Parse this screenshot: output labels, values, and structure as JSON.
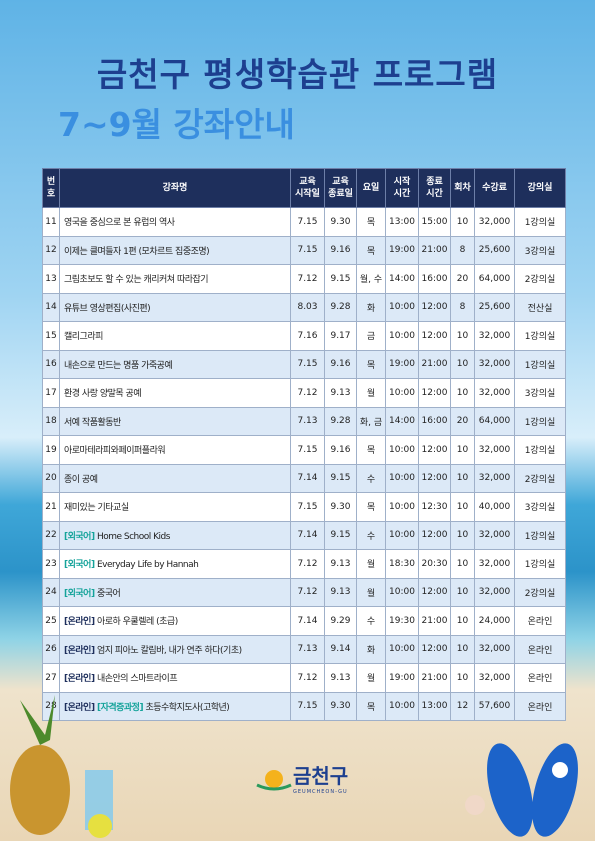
{
  "header": {
    "title": "금천구 평생학습관 프로그램",
    "subtitle": "7~9월 강좌안내"
  },
  "table": {
    "columns": [
      "번\n호",
      "강좌명",
      "교육\n시작일",
      "교육\n종료일",
      "요일",
      "시작\n시간",
      "종료\n시간",
      "회차",
      "수강료",
      "강의실"
    ],
    "rows": [
      {
        "no": "11",
        "tags": [],
        "name": "영국을 중심으로 본 유럽의 역사",
        "cells": [
          "7.15",
          "9.30",
          "목",
          "13:00",
          "15:00",
          "10",
          "32,000",
          "1강의실"
        ]
      },
      {
        "no": "12",
        "tags": [],
        "name": "이제는 클며들자 1편 (모차르트 집중조명)",
        "cells": [
          "7.15",
          "9.16",
          "목",
          "19:00",
          "21:00",
          "8",
          "25,600",
          "3강의실"
        ]
      },
      {
        "no": "13",
        "tags": [],
        "name": "그림초보도 할 수 있는 캐리커쳐 따라잡기",
        "cells": [
          "7.12",
          "9.15",
          "월, 수",
          "14:00",
          "16:00",
          "20",
          "64,000",
          "2강의실"
        ]
      },
      {
        "no": "14",
        "tags": [],
        "name": "유튜브 영상편집(사진편)",
        "cells": [
          "8.03",
          "9.28",
          "화",
          "10:00",
          "12:00",
          "8",
          "25,600",
          "전산실"
        ]
      },
      {
        "no": "15",
        "tags": [],
        "name": "캘리그라피",
        "cells": [
          "7.16",
          "9.17",
          "금",
          "10:00",
          "12:00",
          "10",
          "32,000",
          "1강의실"
        ]
      },
      {
        "no": "16",
        "tags": [],
        "name": "내손으로 만드는 명품 가죽공예",
        "cells": [
          "7.15",
          "9.16",
          "목",
          "19:00",
          "21:00",
          "10",
          "32,000",
          "1강의실"
        ]
      },
      {
        "no": "17",
        "tags": [],
        "name": "환경 사랑 양말목 공예",
        "cells": [
          "7.12",
          "9.13",
          "월",
          "10:00",
          "12:00",
          "10",
          "32,000",
          "3강의실"
        ]
      },
      {
        "no": "18",
        "tags": [],
        "name": "서예 작품활동반",
        "cells": [
          "7.13",
          "9.28",
          "화, 금",
          "14:00",
          "16:00",
          "20",
          "64,000",
          "1강의실"
        ]
      },
      {
        "no": "19",
        "tags": [],
        "name": "아로마테라피와페이퍼플라워",
        "cells": [
          "7.15",
          "9.16",
          "목",
          "10:00",
          "12:00",
          "10",
          "32,000",
          "1강의실"
        ]
      },
      {
        "no": "20",
        "tags": [],
        "name": "종이 공예",
        "cells": [
          "7.14",
          "9.15",
          "수",
          "10:00",
          "12:00",
          "10",
          "32,000",
          "2강의실"
        ]
      },
      {
        "no": "21",
        "tags": [],
        "name": "재미있는 기타교실",
        "cells": [
          "7.15",
          "9.30",
          "목",
          "10:00",
          "12:30",
          "10",
          "40,000",
          "3강의실"
        ]
      },
      {
        "no": "22",
        "tags": [
          "[외국어]"
        ],
        "name": "Home School Kids",
        "cells": [
          "7.14",
          "9.15",
          "수",
          "10:00",
          "12:00",
          "10",
          "32,000",
          "1강의실"
        ]
      },
      {
        "no": "23",
        "tags": [
          "[외국어]"
        ],
        "name": "Everyday Life by Hannah",
        "cells": [
          "7.12",
          "9.13",
          "월",
          "18:30",
          "20:30",
          "10",
          "32,000",
          "1강의실"
        ]
      },
      {
        "no": "24",
        "tags": [
          "[외국어]"
        ],
        "name": "중국어",
        "cells": [
          "7.12",
          "9.13",
          "월",
          "10:00",
          "12:00",
          "10",
          "32,000",
          "2강의실"
        ]
      },
      {
        "no": "25",
        "tags": [
          "[온라인]"
        ],
        "name": "아로하 우쿨렐레 (초급)",
        "cells": [
          "7.14",
          "9.29",
          "수",
          "19:30",
          "21:00",
          "10",
          "24,000",
          "온라인"
        ]
      },
      {
        "no": "26",
        "tags": [
          "[온라인]"
        ],
        "name": "엄지 피아노 칼림바, 내가 연주 하다(기초)",
        "cells": [
          "7.13",
          "9.14",
          "화",
          "10:00",
          "12:00",
          "10",
          "32,000",
          "온라인"
        ]
      },
      {
        "no": "27",
        "tags": [
          "[온라인]"
        ],
        "name": "내손안의 스마트라이프",
        "cells": [
          "7.12",
          "9.13",
          "월",
          "19:00",
          "21:00",
          "10",
          "32,000",
          "온라인"
        ]
      },
      {
        "no": "28",
        "tags": [
          "[온라인]",
          "[자격증과정]"
        ],
        "name": "초등수학지도사(고학년)",
        "cells": [
          "7.15",
          "9.30",
          "목",
          "10:00",
          "13:00",
          "12",
          "57,600",
          "온라인"
        ]
      }
    ]
  },
  "footer": {
    "name": "금천구",
    "roman": "GEUMCHEON-GU"
  }
}
